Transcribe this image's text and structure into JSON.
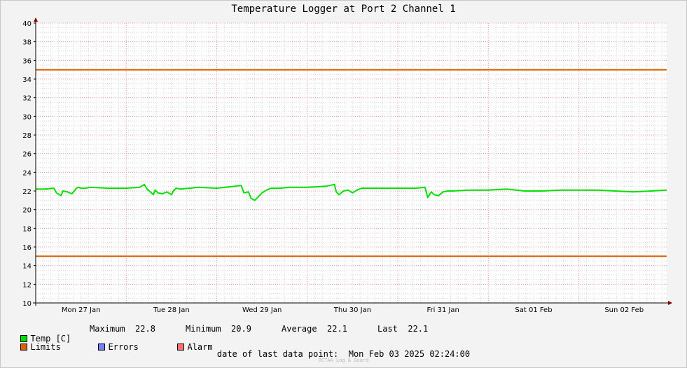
{
  "chart_data": {
    "type": "line",
    "title": "Temperature Logger at Port 2 Channel 1",
    "ylim": [
      10,
      40
    ],
    "yticks": [
      10,
      12,
      14,
      16,
      18,
      20,
      22,
      24,
      26,
      28,
      30,
      32,
      34,
      36,
      38,
      40
    ],
    "xlim": [
      0,
      6.97
    ],
    "xticks": [
      {
        "x": 0.5,
        "label": "Mon 27 Jan"
      },
      {
        "x": 1.5,
        "label": "Tue 28 Jan"
      },
      {
        "x": 2.5,
        "label": "Wed 29 Jan"
      },
      {
        "x": 3.5,
        "label": "Thu 30 Jan"
      },
      {
        "x": 4.5,
        "label": "Fri 31 Jan"
      },
      {
        "x": 5.5,
        "label": "Sat 01 Feb"
      },
      {
        "x": 6.5,
        "label": "Sun 02 Feb"
      }
    ],
    "grid": true,
    "series": [
      {
        "name": "Temp [C]",
        "color": "#00e000",
        "x": [
          0,
          0.1,
          0.2,
          0.23,
          0.28,
          0.3,
          0.35,
          0.4,
          0.45,
          0.47,
          0.5,
          0.55,
          0.6,
          0.8,
          1.0,
          1.15,
          1.2,
          1.23,
          1.3,
          1.32,
          1.35,
          1.4,
          1.45,
          1.5,
          1.52,
          1.55,
          1.6,
          1.8,
          2.0,
          2.2,
          2.27,
          2.3,
          2.35,
          2.38,
          2.42,
          2.45,
          2.5,
          2.55,
          2.6,
          2.7,
          2.8,
          3.0,
          3.2,
          3.3,
          3.32,
          3.35,
          3.4,
          3.45,
          3.5,
          3.55,
          3.6,
          3.8,
          4.0,
          4.2,
          4.3,
          4.33,
          4.37,
          4.4,
          4.45,
          4.5,
          4.55,
          4.6,
          4.8,
          5.0,
          5.2,
          5.4,
          5.6,
          5.8,
          6.0,
          6.2,
          6.4,
          6.6,
          6.8,
          6.97
        ],
        "y": [
          22.2,
          22.2,
          22.3,
          21.8,
          21.5,
          22.0,
          21.9,
          21.7,
          22.3,
          22.4,
          22.3,
          22.3,
          22.4,
          22.3,
          22.3,
          22.4,
          22.7,
          22.2,
          21.6,
          22.1,
          21.8,
          21.7,
          21.9,
          21.6,
          22.0,
          22.3,
          22.2,
          22.4,
          22.3,
          22.5,
          22.6,
          21.8,
          21.9,
          21.2,
          21.0,
          21.3,
          21.8,
          22.1,
          22.3,
          22.3,
          22.4,
          22.4,
          22.5,
          22.7,
          21.9,
          21.6,
          22.0,
          22.1,
          21.8,
          22.1,
          22.3,
          22.3,
          22.3,
          22.3,
          22.4,
          21.3,
          21.9,
          21.6,
          21.5,
          21.9,
          22.0,
          22.0,
          22.1,
          22.1,
          22.2,
          22.0,
          22.0,
          22.1,
          22.1,
          22.1,
          22.0,
          21.9,
          22.0,
          22.1
        ]
      },
      {
        "name": "Limits",
        "color": "#e06000",
        "x": [
          0,
          6.97
        ],
        "y": [
          35,
          35
        ]
      },
      {
        "name": "Limits",
        "color": "#e06000",
        "x": [
          0,
          6.97
        ],
        "y": [
          15,
          15
        ]
      }
    ]
  },
  "legend": {
    "temp": {
      "label": "Temp [C]",
      "color": "#00e000"
    },
    "limits": {
      "label": "Limits",
      "color": "#e06000"
    },
    "errors": {
      "label": "Errors",
      "color": "#7080ff"
    },
    "alarm": {
      "label": "Alarm",
      "color": "#ff7070"
    }
  },
  "stats": {
    "maximum_label": "Maximum",
    "maximum": "22.8",
    "minimum_label": "Minimum",
    "minimum": "20.9",
    "average_label": "Average",
    "average": "22.1",
    "last_label": "Last",
    "last": "22.1"
  },
  "footer": {
    "last_point_label": "date of last data point:",
    "last_point_value": "Mon Feb 03 2025 02:24:00",
    "credit": "OCTAA Log & Guard"
  }
}
